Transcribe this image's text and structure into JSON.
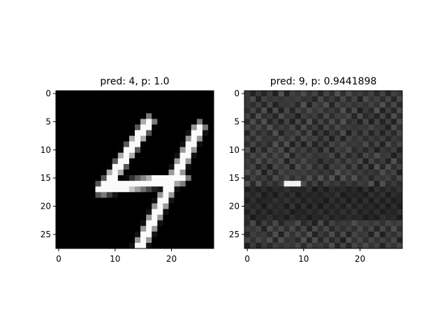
{
  "chart_data": [
    {
      "type": "heatmap",
      "title": "pred: 4, p: 1.0",
      "colormap": "gray",
      "value_range": [
        0,
        1
      ],
      "rows": 28,
      "cols": 28,
      "xticks": [
        0,
        10,
        20
      ],
      "yticks": [
        0,
        5,
        10,
        15,
        20,
        25
      ],
      "strokes": [
        {
          "from": [
            16,
            5
          ],
          "to": [
            8,
            17
          ],
          "intensity": 0.98
        },
        {
          "from": [
            7.5,
            17
          ],
          "to": [
            22,
            15
          ],
          "intensity": 0.98
        },
        {
          "from": [
            25,
            6
          ],
          "to": [
            13,
            30
          ],
          "intensity": 0.98
        }
      ]
    },
    {
      "type": "heatmap",
      "title": "pred: 9, p: 0.9441898",
      "colormap": "gray",
      "value_range": [
        0,
        1
      ],
      "rows": 28,
      "cols": 28,
      "xticks": [
        0,
        10,
        20
      ],
      "yticks": [
        0,
        5,
        10,
        15,
        20,
        25
      ],
      "base_intensity": 0.22,
      "checker_amplitude": 0.05,
      "dark_band": {
        "row_from": 17,
        "row_to": 22,
        "intensity": 0.08
      },
      "bright_patch": {
        "row": 16,
        "col_from": 7,
        "col_to": 9,
        "intensity": 0.95
      }
    }
  ]
}
